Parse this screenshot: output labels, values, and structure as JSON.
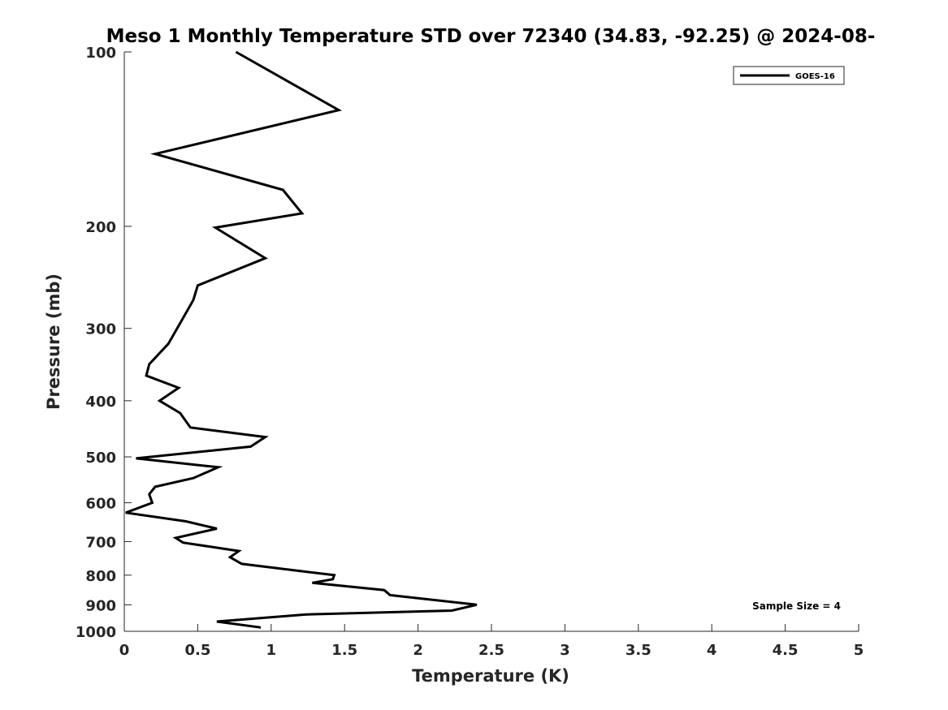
{
  "chart_data": {
    "type": "line",
    "title": "Meso 1 Monthly Temperature STD over 72340 (34.83, -92.25) @ 2024-08-",
    "xlabel": "Temperature (K)",
    "ylabel": "Pressure (mb)",
    "xlim": [
      0,
      5
    ],
    "ylim": [
      100,
      1000
    ],
    "y_scale": "log",
    "y_reversed": true,
    "x_ticks": [
      "0",
      "0.5",
      "1",
      "1.5",
      "2",
      "2.5",
      "3",
      "3.5",
      "4",
      "4.5",
      "5"
    ],
    "y_ticks": [
      "100",
      "200",
      "300",
      "400",
      "500",
      "600",
      "700",
      "800",
      "900",
      "1000"
    ],
    "grid": false,
    "legend_position": "top-right",
    "annotation": "Sample Size = 4",
    "series": [
      {
        "name": "GOES-16",
        "color": "#000000",
        "points": [
          [
            0.76,
            100
          ],
          [
            1.46,
            126
          ],
          [
            0.21,
            150
          ],
          [
            1.08,
            173
          ],
          [
            1.21,
            190
          ],
          [
            0.62,
            201
          ],
          [
            0.96,
            227
          ],
          [
            0.5,
            253
          ],
          [
            0.47,
            268
          ],
          [
            0.38,
            294
          ],
          [
            0.3,
            319
          ],
          [
            0.17,
            346
          ],
          [
            0.15,
            362
          ],
          [
            0.37,
            380
          ],
          [
            0.24,
            400
          ],
          [
            0.38,
            420
          ],
          [
            0.45,
            445
          ],
          [
            0.96,
            462
          ],
          [
            0.86,
            480
          ],
          [
            0.08,
            503
          ],
          [
            0.64,
            521
          ],
          [
            0.47,
            544
          ],
          [
            0.21,
            563
          ],
          [
            0.17,
            580
          ],
          [
            0.19,
            600
          ],
          [
            0.01,
            624
          ],
          [
            0.42,
            646
          ],
          [
            0.63,
            665
          ],
          [
            0.35,
            690
          ],
          [
            0.4,
            703
          ],
          [
            0.78,
            727
          ],
          [
            0.72,
            745
          ],
          [
            0.8,
            765
          ],
          [
            1.43,
            800
          ],
          [
            1.42,
            813
          ],
          [
            1.28,
            825
          ],
          [
            1.77,
            849
          ],
          [
            1.81,
            866
          ],
          [
            2.2,
            888
          ],
          [
            2.4,
            900
          ],
          [
            2.23,
            921
          ],
          [
            1.24,
            935
          ],
          [
            0.63,
            962
          ],
          [
            0.93,
            985
          ]
        ]
      }
    ]
  }
}
